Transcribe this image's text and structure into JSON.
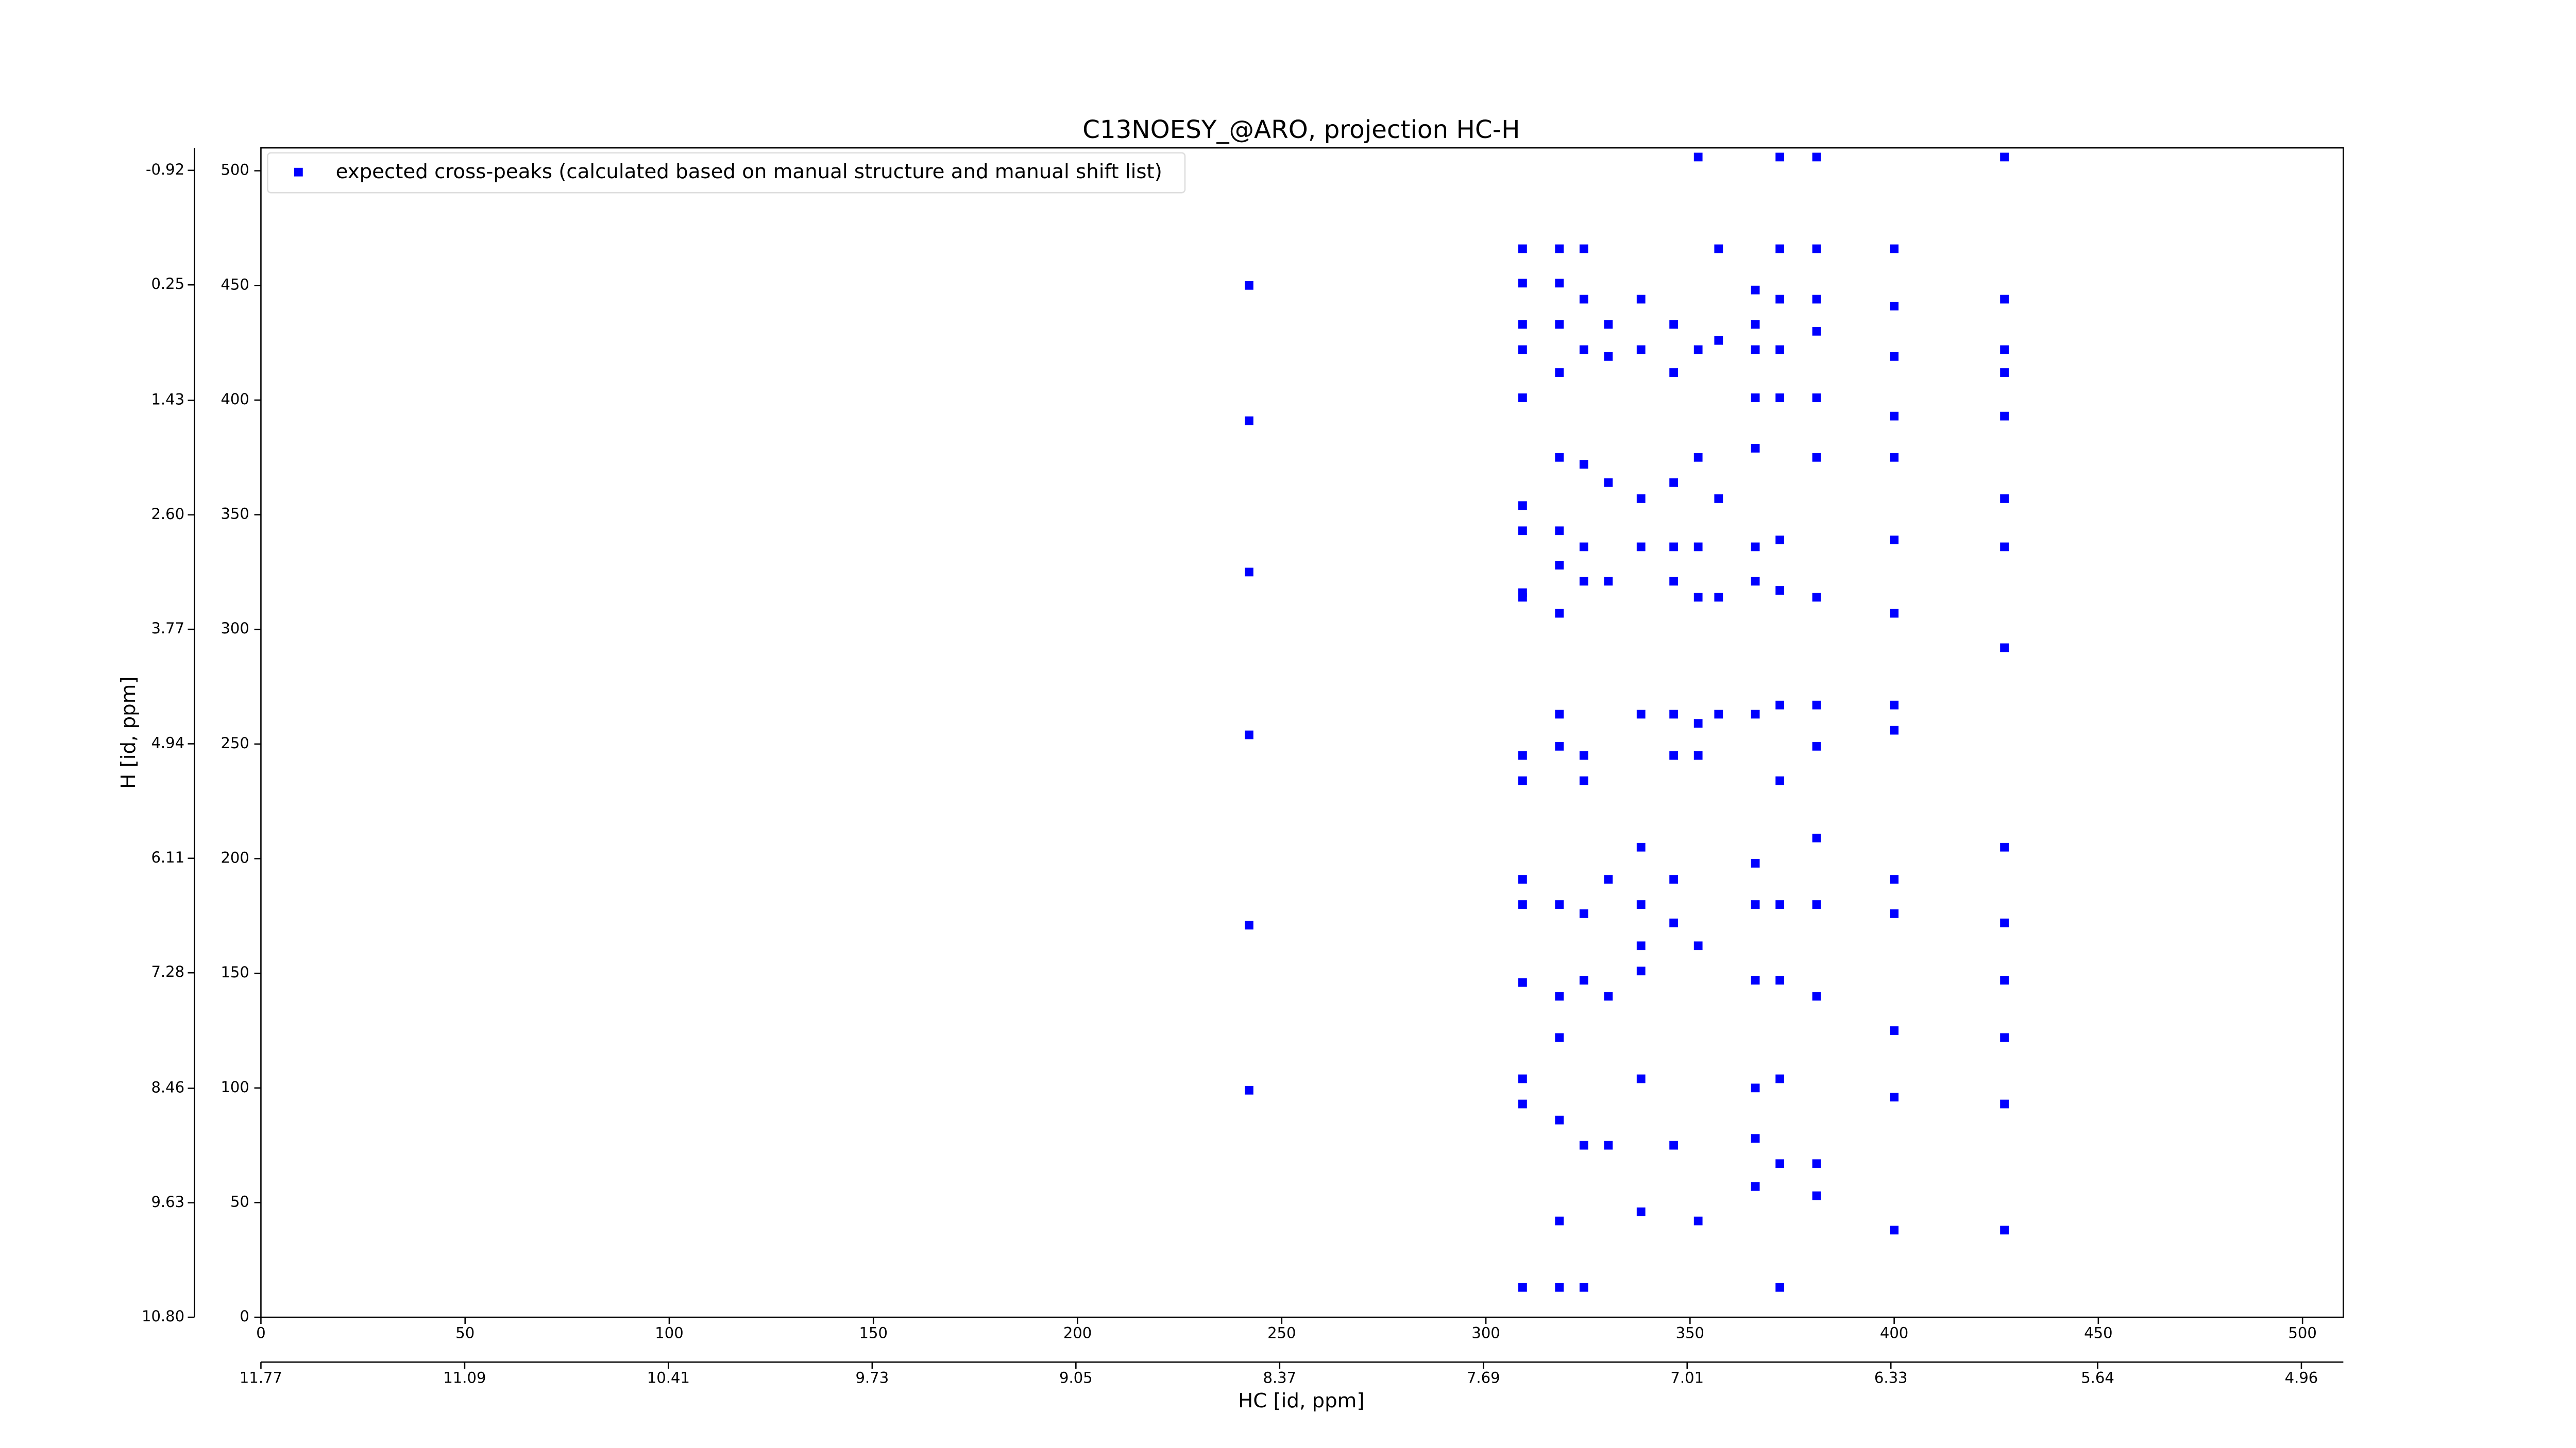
{
  "chart_data": {
    "type": "scatter",
    "title": "C13NOESY_@ARO, projection HC-H",
    "xlabel": "HC [id, ppm]",
    "ylabel": "H [id, ppm]",
    "xlim": [
      0,
      510
    ],
    "ylim": [
      0,
      510
    ],
    "xticks": [
      0,
      50,
      100,
      150,
      200,
      250,
      300,
      350,
      400,
      450,
      500
    ],
    "yticks": [
      0,
      50,
      100,
      150,
      200,
      250,
      300,
      350,
      400,
      450,
      500
    ],
    "x2lim": [
      11.77,
      4.82
    ],
    "x2ticks": [
      11.77,
      11.09,
      10.41,
      9.73,
      9.05,
      8.37,
      7.69,
      7.01,
      6.33,
      5.64,
      4.96
    ],
    "y2lim": [
      10.8,
      -1.15
    ],
    "y2ticks": [
      {
        "value": 10.8,
        "label": "10.80"
      },
      9.63,
      8.46,
      7.28,
      6.11,
      4.94,
      3.77,
      {
        "value": 2.6,
        "label": "2.60"
      },
      1.43,
      0.25,
      -0.92
    ],
    "legend": "upper left",
    "series": [
      {
        "name": "expected cross-peaks (calculated based on manual structure and manual shift list)",
        "color": "#0000ff",
        "x": [
          242,
          242,
          242,
          242,
          242,
          242,
          309,
          309,
          309,
          309,
          309,
          309,
          309,
          309,
          309,
          309,
          309,
          309,
          309,
          309,
          309,
          309,
          309,
          318,
          318,
          318,
          318,
          318,
          318,
          318,
          318,
          318,
          318,
          318,
          318,
          318,
          318,
          318,
          318,
          324,
          324,
          324,
          324,
          324,
          324,
          324,
          324,
          324,
          324,
          324,
          324,
          330,
          330,
          330,
          330,
          330,
          330,
          330,
          338,
          338,
          338,
          338,
          338,
          338,
          338,
          338,
          338,
          338,
          338,
          346,
          346,
          346,
          346,
          346,
          346,
          346,
          346,
          346,
          346,
          352,
          352,
          352,
          352,
          352,
          352,
          352,
          352,
          352,
          357,
          357,
          357,
          357,
          357,
          366,
          366,
          366,
          366,
          366,
          366,
          366,
          366,
          366,
          366,
          366,
          366,
          366,
          366,
          372,
          372,
          372,
          372,
          372,
          372,
          372,
          372,
          372,
          372,
          372,
          372,
          372,
          372,
          381,
          381,
          381,
          381,
          381,
          381,
          381,
          381,
          381,
          381,
          381,
          381,
          381,
          381,
          400,
          400,
          400,
          400,
          400,
          400,
          400,
          400,
          400,
          400,
          400,
          400,
          400,
          400,
          427,
          427,
          427,
          427,
          427,
          427,
          427,
          427,
          427,
          427,
          427,
          427,
          427,
          427
        ],
        "values": [
          450,
          391,
          325,
          254,
          171,
          99,
          466,
          451,
          433,
          422,
          401,
          354,
          343,
          316,
          314,
          245,
          234,
          191,
          180,
          146,
          104,
          93,
          13,
          466,
          451,
          433,
          412,
          375,
          343,
          328,
          307,
          263,
          249,
          180,
          140,
          122,
          86,
          42,
          13,
          466,
          444,
          422,
          372,
          336,
          321,
          245,
          234,
          176,
          147,
          75,
          13,
          433,
          419,
          364,
          321,
          191,
          140,
          75,
          444,
          422,
          357,
          336,
          263,
          205,
          180,
          162,
          151,
          104,
          46,
          433,
          412,
          364,
          336,
          321,
          263,
          245,
          191,
          172,
          75,
          506,
          422,
          375,
          336,
          314,
          259,
          245,
          162,
          42,
          466,
          426,
          357,
          314,
          263,
          448,
          433,
          422,
          401,
          379,
          336,
          321,
          263,
          198,
          180,
          147,
          100,
          78,
          57,
          506,
          466,
          444,
          422,
          401,
          339,
          317,
          267,
          234,
          180,
          147,
          104,
          67,
          13,
          506,
          466,
          444,
          430,
          401,
          375,
          314,
          267,
          249,
          209,
          180,
          140,
          67,
          53,
          466,
          441,
          419,
          393,
          375,
          339,
          307,
          267,
          256,
          191,
          176,
          125,
          96,
          38,
          506,
          444,
          422,
          412,
          393,
          357,
          336,
          292,
          205,
          172,
          147,
          122,
          93,
          38
        ]
      }
    ]
  }
}
